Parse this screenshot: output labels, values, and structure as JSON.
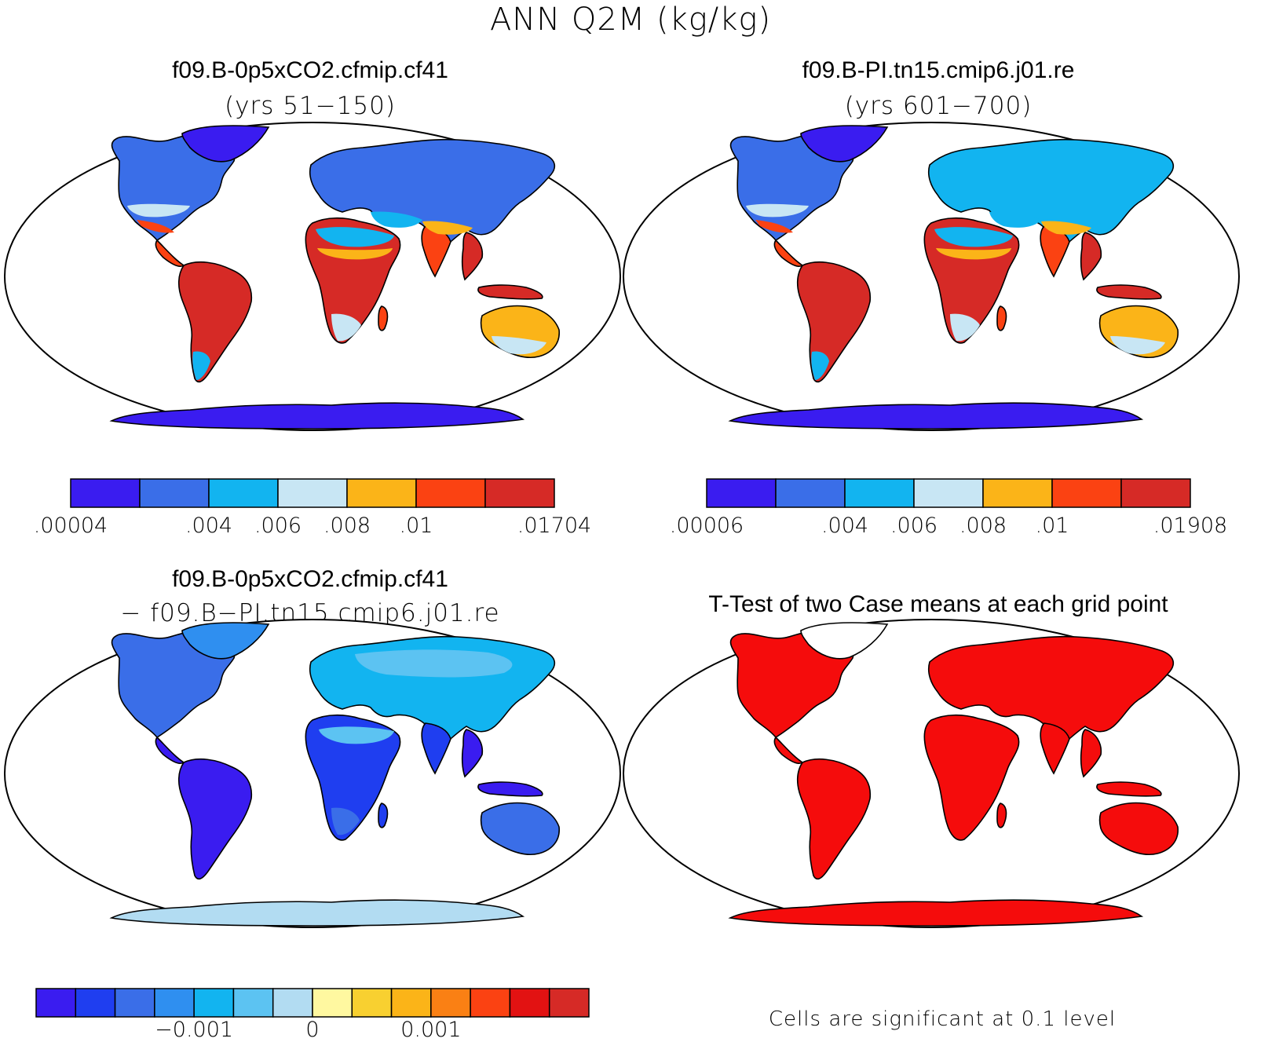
{
  "main_title": "ANN Q2M (kg/kg)",
  "panels": [
    {
      "title": "f09.B-0p5xCO2.cfmip.cf41",
      "subtitle": "(yrs 51−150)"
    },
    {
      "title": "f09.B-PI.tn15.cmip6.j01.re",
      "subtitle": "(yrs 601−700)"
    },
    {
      "title": "f09.B-0p5xCO2.cfmip.cf41",
      "subtitle": "− f09.B−PI.tn15.cmip6.j01.re"
    },
    {
      "title": "T-Test of two Case means at each grid point",
      "subtitle": ""
    }
  ],
  "colorbars": [
    {
      "colors": [
        "#3a1cf0",
        "#3a6ee8",
        "#12b4f0",
        "#c8e6f4",
        "#fbb418",
        "#fb4212",
        "#d62a26"
      ],
      "labels": [
        ".00004",
        ".004",
        ".006",
        ".008",
        ".01",
        ".01704"
      ]
    },
    {
      "colors": [
        "#3a1cf0",
        "#3a6ee8",
        "#12b4f0",
        "#c8e6f4",
        "#fbb418",
        "#fb4212",
        "#d62a26"
      ],
      "labels": [
        ".00006",
        ".004",
        ".006",
        ".008",
        ".01",
        ".01908"
      ]
    },
    {
      "colors": [
        "#3a1cf0",
        "#1f3ef0",
        "#3a6ee8",
        "#2f8ff0",
        "#12b4f0",
        "#5cc3f2",
        "#b2dcf2",
        "#fff8a0",
        "#f8d030",
        "#fbb418",
        "#fa8014",
        "#fb4212",
        "#e21212",
        "#d62a26"
      ],
      "labels": [
        "−0.001",
        "0",
        "0.001"
      ]
    }
  ],
  "significance_note": "Cells are significant at 0.1 level",
  "colors": {
    "land_sig": "#f50c0c",
    "outline": "#000000",
    "antarctica_a": "#3a1cf0",
    "antarctica_diff": "#b2dcf2"
  }
}
